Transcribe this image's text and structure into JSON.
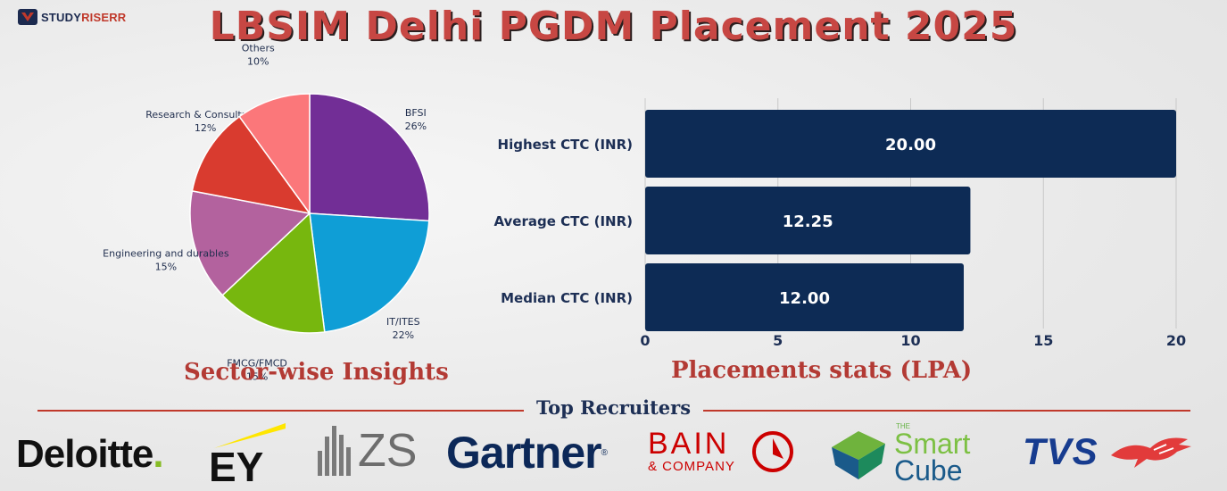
{
  "brand": {
    "logo_text_a": "STUDY",
    "logo_text_b": "RISERR"
  },
  "title": "LBSIM Delhi PGDM Placement 2025",
  "colors": {
    "title": "#c74743",
    "bar": "#0d2b55",
    "accent_red": "#b33a34"
  },
  "chart_data": [
    {
      "type": "pie",
      "title": "Sector-wise Insights",
      "slices": [
        {
          "label": "BFSI",
          "percent_label": "26%",
          "value": 26,
          "color": "#722e96"
        },
        {
          "label": "IT/ITES",
          "percent_label": "22%",
          "value": 22,
          "color": "#0f9ed6"
        },
        {
          "label": "FMCG/FMCD",
          "percent_label": "15%",
          "value": 15,
          "color": "#77b70e"
        },
        {
          "label": "Engineering and durables",
          "percent_label": "15%",
          "value": 15,
          "color": "#b3629e"
        },
        {
          "label": "Research & Consultancy",
          "percent_label": "12%",
          "value": 12,
          "color": "#d93b2f"
        },
        {
          "label": "Others",
          "percent_label": "10%",
          "value": 10,
          "color": "#fb777a"
        }
      ]
    },
    {
      "type": "bar",
      "orientation": "horizontal",
      "title": "Placements stats (LPA)",
      "categories": [
        "Highest CTC (INR)",
        "Average CTC (INR)",
        "Median CTC (INR)"
      ],
      "values": [
        20.0,
        12.25,
        12.0
      ],
      "value_labels": [
        "20.00",
        "12.25",
        "12.00"
      ],
      "xlim": [
        0,
        20
      ],
      "xticks": [
        "0",
        "5",
        "10",
        "15",
        "20"
      ],
      "grid": true
    }
  ],
  "recruiters": {
    "title": "Top Recruiters",
    "deloitte": "Deloitte",
    "deloitte_dot": ".",
    "ey": "EY",
    "zs": "ZS",
    "gartner": "Gartner",
    "gartner_mark": "®",
    "bain_name": "BAIN",
    "bain_sub": "& COMPANY",
    "smart_the": "THE",
    "smart_1": "Smart",
    "smart_2": "Cube",
    "tvs": "TVS"
  }
}
